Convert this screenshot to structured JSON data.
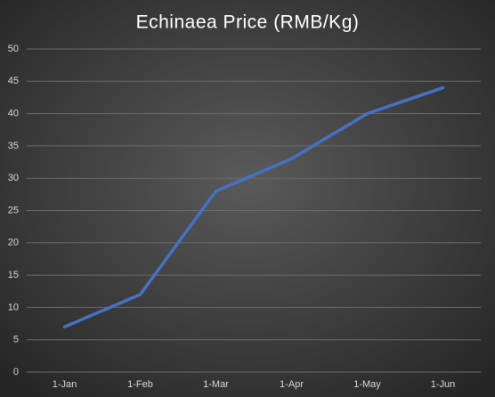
{
  "chart_data": {
    "type": "line",
    "title": "Echinaea  Price (RMB/Kg)",
    "categories": [
      "1-Jan",
      "1-Feb",
      "1-Mar",
      "1-Apr",
      "1-May",
      "1-Jun"
    ],
    "values": [
      7,
      12,
      28,
      33,
      40,
      44
    ],
    "color": "#4472c4",
    "ylim": [
      0,
      50
    ],
    "yticks": [
      0,
      5,
      10,
      15,
      20,
      25,
      30,
      35,
      40,
      45,
      50
    ],
    "grid": true
  }
}
